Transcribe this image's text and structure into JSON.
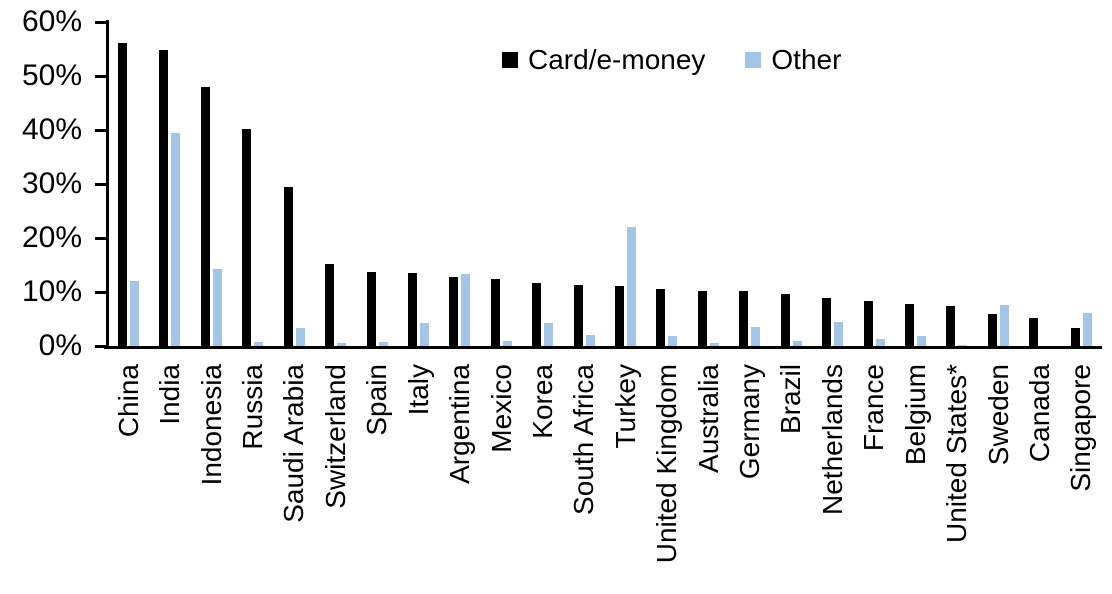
{
  "chart_data": {
    "type": "bar",
    "title": "",
    "xlabel": "",
    "ylabel": "",
    "ylim": [
      0,
      60
    ],
    "y_tick_step": 10,
    "y_tick_labels": [
      "0%",
      "10%",
      "20%",
      "30%",
      "40%",
      "50%",
      "60%"
    ],
    "grid": false,
    "legend_position": "top-center",
    "categories": [
      "China",
      "India",
      "Indonesia",
      "Russia",
      "Saudi Arabia",
      "Switzerland",
      "Spain",
      "Italy",
      "Argentina",
      "Mexico",
      "Korea",
      "South Africa",
      "Turkey",
      "United Kingdom",
      "Australia",
      "Germany",
      "Brazil",
      "Netherlands",
      "France",
      "Belgium",
      "United States*",
      "Sweden",
      "Canada",
      "Singapore"
    ],
    "series": [
      {
        "name": "Card/e-money",
        "color": "#000000",
        "values": [
          56.3,
          55.0,
          48.2,
          40.4,
          29.7,
          15.4,
          13.9,
          13.8,
          13.0,
          12.6,
          11.9,
          11.5,
          11.3,
          10.8,
          10.4,
          10.3,
          9.8,
          9.0,
          8.5,
          8.0,
          7.6,
          6.1,
          5.4,
          3.6
        ]
      },
      {
        "name": "Other",
        "color": "#A2C5E8",
        "values": [
          12.3,
          39.6,
          14.5,
          1.0,
          3.5,
          0.8,
          0.9,
          4.4,
          13.5,
          1.1,
          4.4,
          2.2,
          22.3,
          2.1,
          0.8,
          3.8,
          1.2,
          4.6,
          1.4,
          2.0,
          0.4,
          7.7,
          0.0,
          6.3
        ]
      }
    ]
  }
}
